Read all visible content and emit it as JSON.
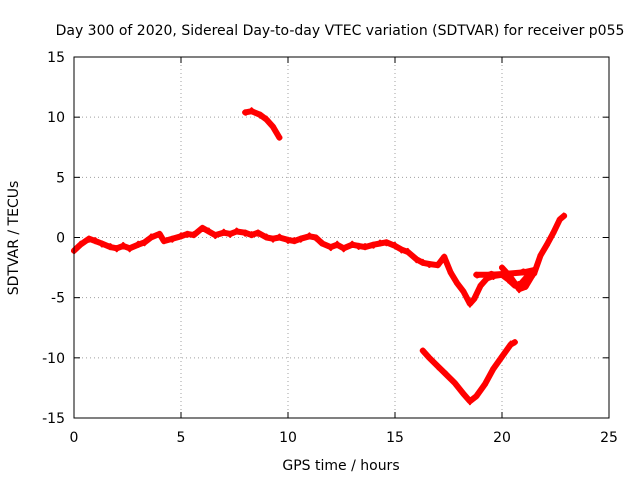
{
  "chart_data": {
    "type": "line",
    "title": "Day 300 of 2020, Sidereal Day-to-day VTEC variation (SDTVAR) for receiver p055",
    "xlabel": "GPS time / hours",
    "ylabel": "SDTVAR / TECUs",
    "xlim": [
      0,
      25
    ],
    "ylim": [
      -15,
      15
    ],
    "xticks": [
      0,
      5,
      10,
      15,
      20,
      25
    ],
    "yticks": [
      -15,
      -10,
      -5,
      0,
      5,
      10,
      15
    ],
    "grid": true,
    "legend": "none",
    "colors": {
      "series": "#ff0000",
      "axis": "#000000",
      "grid": "#a0a0a0"
    },
    "series": [
      {
        "name": "main band",
        "points": [
          [
            0.0,
            -1.1
          ],
          [
            0.3,
            -0.6
          ],
          [
            0.7,
            -0.1
          ],
          [
            1.0,
            -0.3
          ],
          [
            1.3,
            -0.5
          ],
          [
            1.7,
            -0.8
          ],
          [
            2.0,
            -0.9
          ],
          [
            2.3,
            -0.7
          ],
          [
            2.6,
            -0.9
          ],
          [
            3.0,
            -0.6
          ],
          [
            3.3,
            -0.4
          ],
          [
            3.6,
            0.0
          ],
          [
            4.0,
            0.3
          ],
          [
            4.2,
            -0.3
          ],
          [
            4.6,
            -0.1
          ],
          [
            5.0,
            0.1
          ],
          [
            5.3,
            0.3
          ],
          [
            5.6,
            0.2
          ],
          [
            6.0,
            0.8
          ],
          [
            6.3,
            0.5
          ],
          [
            6.6,
            0.2
          ],
          [
            7.0,
            0.4
          ],
          [
            7.3,
            0.3
          ],
          [
            7.6,
            0.5
          ],
          [
            8.0,
            0.4
          ],
          [
            8.3,
            0.2
          ],
          [
            8.6,
            0.4
          ],
          [
            9.0,
            0.0
          ],
          [
            9.3,
            -0.1
          ],
          [
            9.6,
            0.0
          ],
          [
            10.0,
            -0.2
          ],
          [
            10.3,
            -0.3
          ],
          [
            10.6,
            -0.1
          ],
          [
            11.0,
            0.1
          ],
          [
            11.3,
            0.0
          ],
          [
            11.6,
            -0.5
          ],
          [
            12.0,
            -0.8
          ],
          [
            12.3,
            -0.6
          ],
          [
            12.6,
            -0.9
          ],
          [
            13.0,
            -0.6
          ],
          [
            13.3,
            -0.7
          ],
          [
            13.6,
            -0.8
          ],
          [
            14.0,
            -0.6
          ],
          [
            14.3,
            -0.5
          ],
          [
            14.6,
            -0.4
          ],
          [
            15.0,
            -0.7
          ],
          [
            15.3,
            -1.0
          ],
          [
            15.6,
            -1.2
          ],
          [
            16.0,
            -1.8
          ],
          [
            16.3,
            -2.1
          ],
          [
            16.6,
            -2.2
          ],
          [
            17.0,
            -2.3
          ],
          [
            17.3,
            -1.6
          ],
          [
            17.6,
            -2.9
          ],
          [
            17.9,
            -3.8
          ],
          [
            18.2,
            -4.5
          ],
          [
            18.5,
            -5.5
          ],
          [
            18.7,
            -5.1
          ],
          [
            19.0,
            -4.0
          ],
          [
            19.3,
            -3.4
          ],
          [
            19.6,
            -3.2
          ],
          [
            20.0,
            -3.1
          ],
          [
            20.3,
            -3.5
          ],
          [
            20.6,
            -4.0
          ],
          [
            20.9,
            -3.8
          ],
          [
            21.2,
            -3.2
          ],
          [
            21.5,
            -3.0
          ],
          [
            21.8,
            -1.5
          ],
          [
            22.1,
            -0.6
          ],
          [
            22.4,
            0.4
          ],
          [
            22.7,
            1.5
          ],
          [
            22.9,
            1.8
          ]
        ]
      },
      {
        "name": "band branch 1",
        "points": [
          [
            20.0,
            -2.5
          ],
          [
            20.4,
            -3.3
          ],
          [
            20.8,
            -4.3
          ],
          [
            21.1,
            -4.1
          ],
          [
            21.4,
            -3.2
          ]
        ]
      },
      {
        "name": "band branch 2",
        "points": [
          [
            18.8,
            -3.1
          ],
          [
            19.5,
            -3.1
          ],
          [
            20.3,
            -3.0
          ],
          [
            21.0,
            -2.9
          ],
          [
            21.5,
            -2.7
          ]
        ]
      },
      {
        "name": "upper arc",
        "points": [
          [
            8.0,
            10.4
          ],
          [
            8.3,
            10.5
          ],
          [
            8.7,
            10.2
          ],
          [
            9.0,
            9.8
          ],
          [
            9.3,
            9.2
          ],
          [
            9.6,
            8.3
          ]
        ]
      },
      {
        "name": "lower arc",
        "points": [
          [
            16.3,
            -9.4
          ],
          [
            16.6,
            -10.0
          ],
          [
            17.0,
            -10.7
          ],
          [
            17.4,
            -11.4
          ],
          [
            17.8,
            -12.1
          ],
          [
            18.2,
            -13.0
          ],
          [
            18.5,
            -13.6
          ],
          [
            18.8,
            -13.2
          ],
          [
            19.2,
            -12.2
          ],
          [
            19.6,
            -10.9
          ],
          [
            20.0,
            -9.9
          ],
          [
            20.4,
            -8.9
          ],
          [
            20.6,
            -8.7
          ]
        ]
      }
    ]
  }
}
